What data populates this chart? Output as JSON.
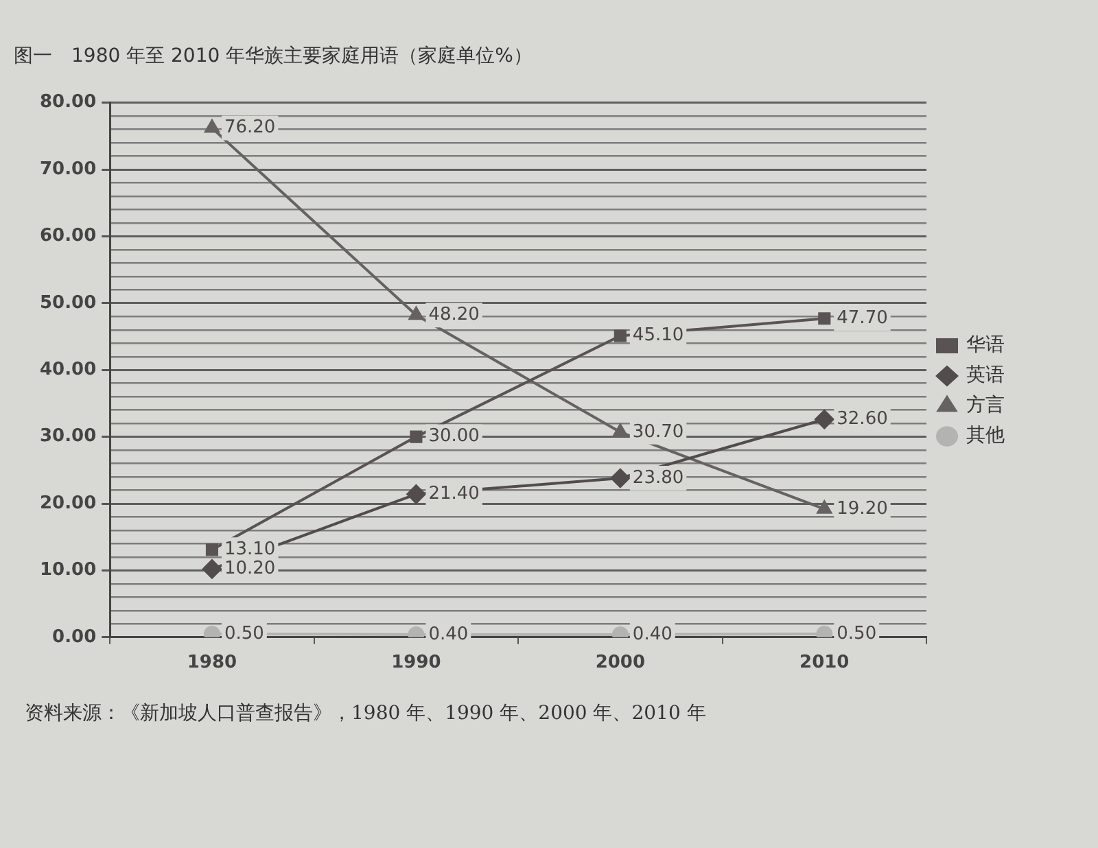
{
  "chart_data": {
    "type": "line",
    "title": "图一　1980 年至 2010 年华族主要家庭用语（家庭单位%）",
    "categories": [
      "1980",
      "1990",
      "2000",
      "2010"
    ],
    "series": [
      {
        "name": "华语",
        "color": "#5a5353",
        "marker": "square",
        "values": [
          13.1,
          30.0,
          45.1,
          47.7
        ],
        "value_labels": [
          "13.10",
          "30.00",
          "45.10",
          "47.70"
        ]
      },
      {
        "name": "英语",
        "color": "#524c4c",
        "marker": "diamond",
        "values": [
          10.2,
          21.4,
          23.8,
          32.6
        ],
        "value_labels": [
          "10.20",
          "21.40",
          "23.80",
          "32.60"
        ]
      },
      {
        "name": "方言",
        "color": "#676262",
        "marker": "triangle",
        "values": [
          76.2,
          48.2,
          30.7,
          19.2
        ],
        "value_labels": [
          "76.20",
          "48.20",
          "30.70",
          "19.20"
        ]
      },
      {
        "name": "其他",
        "color": "#b3b3b1",
        "marker": "circle",
        "values": [
          0.5,
          0.4,
          0.4,
          0.5
        ],
        "value_labels": [
          "0.50",
          "0.40",
          "0.40",
          "0.50"
        ]
      }
    ],
    "ylim": [
      0,
      80
    ],
    "yticks": [
      {
        "value": 0,
        "label": "0.00"
      },
      {
        "value": 2,
        "label": null
      },
      {
        "value": 4,
        "label": null
      },
      {
        "value": 6,
        "label": null
      },
      {
        "value": 8,
        "label": null
      },
      {
        "value": 10,
        "label": "10.00"
      },
      {
        "value": 12,
        "label": null
      },
      {
        "value": 14,
        "label": null
      },
      {
        "value": 16,
        "label": null
      },
      {
        "value": 18,
        "label": null
      },
      {
        "value": 20,
        "label": "20.00"
      },
      {
        "value": 22,
        "label": null
      },
      {
        "value": 24,
        "label": null
      },
      {
        "value": 26,
        "label": null
      },
      {
        "value": 28,
        "label": null
      },
      {
        "value": 30,
        "label": "30.00"
      },
      {
        "value": 32,
        "label": null
      },
      {
        "value": 34,
        "label": null
      },
      {
        "value": 36,
        "label": null
      },
      {
        "value": 38,
        "label": null
      },
      {
        "value": 40,
        "label": "40.00"
      },
      {
        "value": 42,
        "label": null
      },
      {
        "value": 44,
        "label": null
      },
      {
        "value": 46,
        "label": null
      },
      {
        "value": 48,
        "label": null
      },
      {
        "value": 50,
        "label": "50.00"
      },
      {
        "value": 52,
        "label": null
      },
      {
        "value": 54,
        "label": null
      },
      {
        "value": 56,
        "label": null
      },
      {
        "value": 58,
        "label": null
      },
      {
        "value": 60,
        "label": "60.00"
      },
      {
        "value": 62,
        "label": null
      },
      {
        "value": 64,
        "label": null
      },
      {
        "value": 66,
        "label": null
      },
      {
        "value": 68,
        "label": null
      },
      {
        "value": 70,
        "label": "70.00"
      },
      {
        "value": 72,
        "label": null
      },
      {
        "value": 74,
        "label": null
      },
      {
        "value": 76,
        "label": null
      },
      {
        "value": 78,
        "label": null
      },
      {
        "value": 80,
        "label": "80.00"
      }
    ],
    "grid": "y",
    "legend": "right",
    "line_style": "solid",
    "annotations": [
      "资料来源：《新加坡人口普查报告》，1980 年、1990 年、2000 年、2010 年"
    ]
  }
}
